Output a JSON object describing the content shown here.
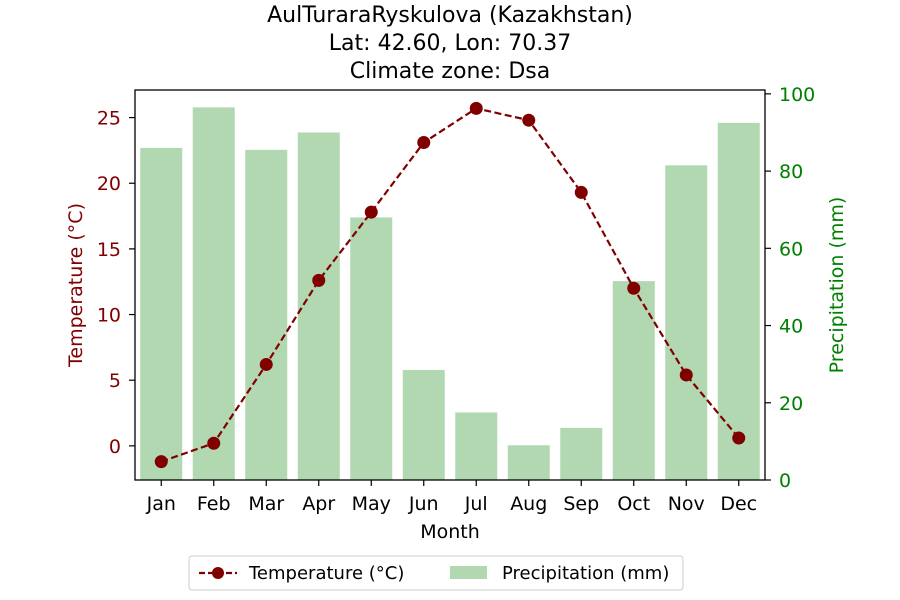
{
  "chart_data": {
    "type": "bar+line",
    "title_lines": [
      "AulTuraraRyskulova (Kazakhstan)",
      "Lat: 42.60, Lon: 70.37",
      "Climate zone: Dsa"
    ],
    "xlabel": "Month",
    "categories": [
      "Jan",
      "Feb",
      "Mar",
      "Apr",
      "May",
      "Jun",
      "Jul",
      "Aug",
      "Sep",
      "Oct",
      "Nov",
      "Dec"
    ],
    "temperature": {
      "name": "Temperature (°C)",
      "axis_label": "Temperature (°C)",
      "color": "#800000",
      "style": "dashed line with circle markers",
      "values": [
        -1.2,
        0.2,
        6.2,
        12.6,
        17.8,
        23.1,
        25.7,
        24.8,
        19.3,
        12.0,
        5.4,
        0.6
      ],
      "ylim": [
        -2.6,
        27.1
      ],
      "ticks": [
        "0",
        "5",
        "10",
        "15",
        "20",
        "25"
      ]
    },
    "precipitation": {
      "name": "Precipitation (mm)",
      "axis_label": "Precipitation (mm)",
      "color": "#008000",
      "bar_color": "#b2d8b2",
      "values": [
        86,
        96.5,
        85.5,
        90,
        68,
        28.5,
        17.5,
        9,
        13.5,
        51.5,
        81.5,
        92.5
      ],
      "ylim": [
        0,
        101
      ],
      "ticks": [
        "0",
        "20",
        "40",
        "60",
        "80",
        "100"
      ]
    },
    "legend_placement": "bottom-center",
    "grid": false
  }
}
